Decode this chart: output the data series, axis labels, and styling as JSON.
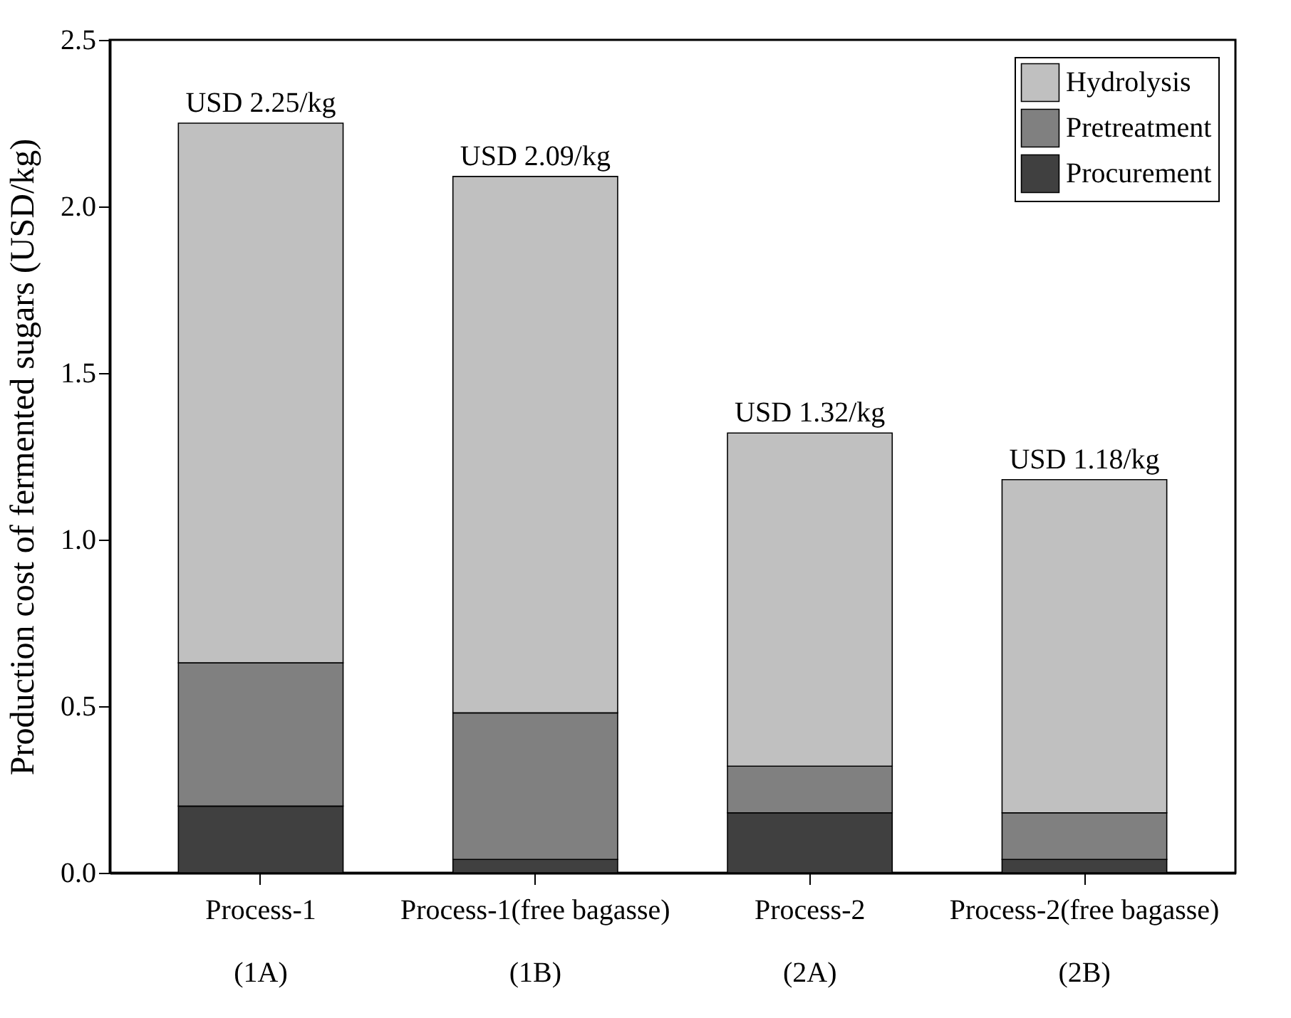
{
  "chart_data": {
    "type": "bar",
    "stacked": true,
    "ylabel": "Production cost of fermented sugars (USD/kg)",
    "categories": [
      "Process-1\n(1A)",
      "Process-1(free bagasse)\n(1B)",
      "Process-2\n(2A)",
      "Process-2(free bagasse)\n(2B)"
    ],
    "series": [
      {
        "name": "Procurement",
        "color": "#404040",
        "values": [
          0.2,
          0.04,
          0.18,
          0.04
        ]
      },
      {
        "name": "Pretreatment",
        "color": "#808080",
        "values": [
          0.43,
          0.44,
          0.14,
          0.14
        ]
      },
      {
        "name": "Hydrolysis",
        "color": "#c0c0c0",
        "values": [
          1.62,
          1.61,
          1.0,
          1.0
        ]
      }
    ],
    "totals": [
      "USD 2.25/kg",
      "USD 2.09/kg",
      "USD 1.32/kg",
      "USD 1.18/kg"
    ],
    "ylim": [
      0,
      2.5
    ],
    "yticks": [
      {
        "value": 0,
        "label": "0.0"
      },
      0.5,
      {
        "value": 1,
        "label": "1.0"
      },
      1.5,
      {
        "value": 2,
        "label": "2.0"
      },
      2.5
    ],
    "grid": false,
    "legend": "top right"
  }
}
